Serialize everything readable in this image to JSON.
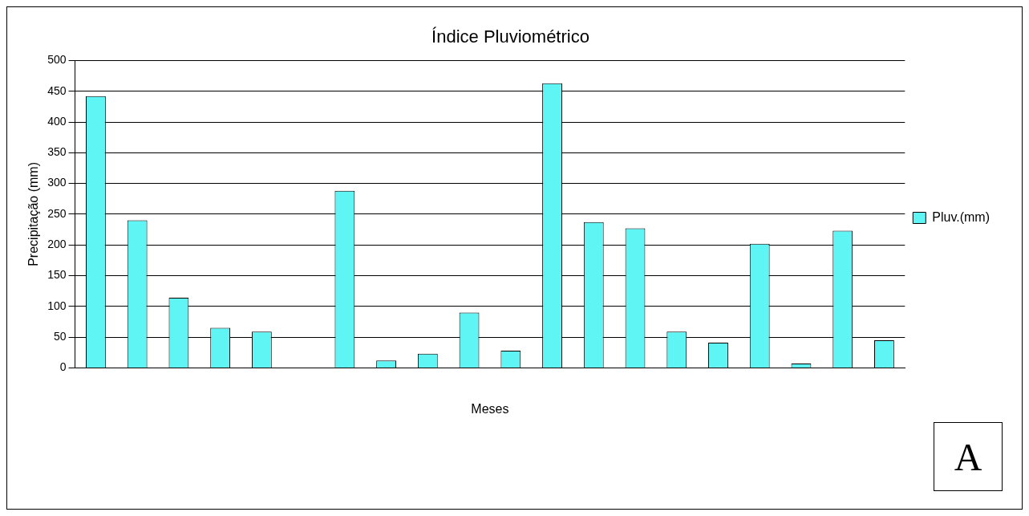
{
  "chart_data": {
    "type": "bar",
    "title": "Índice Pluviométrico",
    "xlabel": "Meses",
    "ylabel": "Precipitação (mm)",
    "categories": [
      null,
      null,
      null,
      null,
      null,
      null,
      null,
      null,
      null,
      null,
      null,
      null,
      null,
      null,
      null,
      null,
      null,
      null,
      null,
      null
    ],
    "series": [
      {
        "name": "Pluv.(mm)",
        "color": "#5ff5f5",
        "values": [
          442,
          240,
          114,
          65,
          59,
          0,
          288,
          12,
          23,
          90,
          28,
          463,
          237,
          227,
          59,
          41,
          202,
          7,
          223,
          45
        ]
      }
    ],
    "ylim": [
      0,
      500
    ],
    "yticks": [
      0,
      50,
      100,
      150,
      200,
      250,
      300,
      350,
      400,
      450,
      500
    ],
    "grid": "y",
    "legend": "right",
    "annotations": [
      "A"
    ]
  }
}
